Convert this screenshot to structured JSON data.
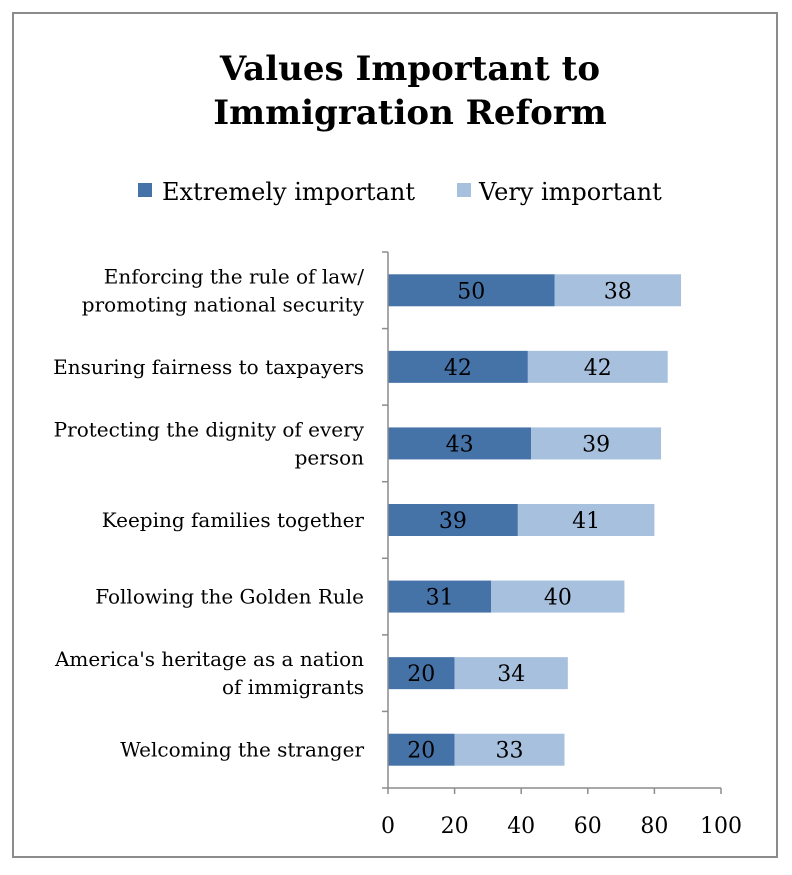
{
  "chart_data": {
    "type": "bar",
    "orientation": "horizontal",
    "stacked": true,
    "title": "Values Important to Immigration Reform",
    "title_lines": [
      "Values Important to",
      "Immigration Reform"
    ],
    "categories": [
      "Enforcing the rule of law/ promoting national security",
      "Ensuring fairness to taxpayers",
      "Protecting the dignity of every person",
      "Keeping families together",
      "Following the Golden Rule",
      "America's heritage as a nation of immigrants",
      "Welcoming the stranger"
    ],
    "category_lines": [
      [
        "Enforcing the rule of law/",
        "promoting national security"
      ],
      [
        "Ensuring fairness to taxpayers"
      ],
      [
        "Protecting the dignity of every",
        "person"
      ],
      [
        "Keeping families together"
      ],
      [
        "Following the Golden Rule"
      ],
      [
        "America's heritage as a nation",
        "of immigrants"
      ],
      [
        "Welcoming the stranger"
      ]
    ],
    "series": [
      {
        "name": "Extremely important",
        "color": "#4572a7",
        "values": [
          50,
          42,
          43,
          39,
          31,
          20,
          20
        ]
      },
      {
        "name": "Very important",
        "color": "#a7c0de",
        "values": [
          38,
          42,
          39,
          41,
          40,
          34,
          33
        ]
      }
    ],
    "xlim": [
      0,
      100
    ],
    "xticks": [
      0,
      20,
      40,
      60,
      80,
      100
    ],
    "xlabel": "",
    "ylabel": "",
    "grid": false,
    "legend_position": "top",
    "data_labels": true
  }
}
